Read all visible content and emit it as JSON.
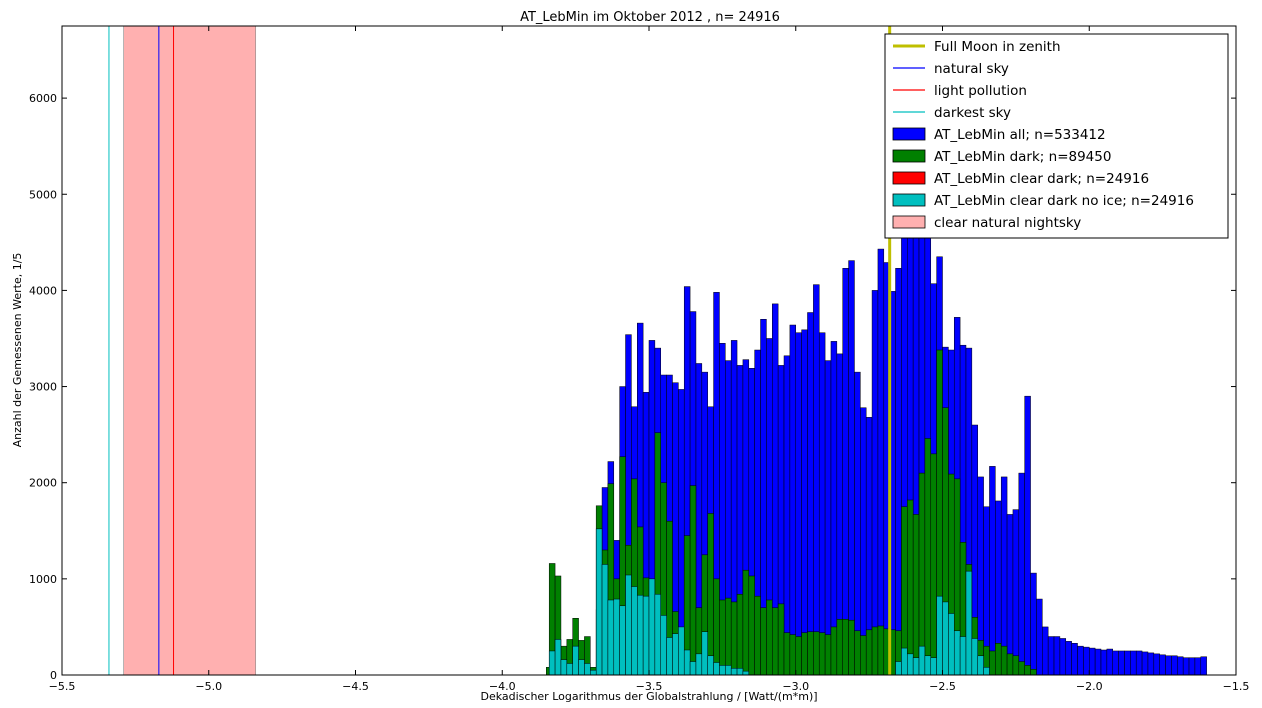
{
  "chart_data": {
    "type": "bar",
    "title": "AT_LebMin im Oktober 2012 , n= 24916",
    "xlabel": "Dekadischer Logarithmus der Globalstrahlung / [Watt/(m*m)]",
    "ylabel": "Anzahl der Gemessenen Werte, 1/5",
    "xlim": [
      -5.5,
      -1.5
    ],
    "ylim": [
      0,
      6750
    ],
    "xticks": [
      -5.5,
      -5.0,
      -4.5,
      -4.0,
      -3.5,
      -3.0,
      -2.5,
      -2.0,
      -1.5
    ],
    "xtick_labels": [
      "−5.5",
      "−5.0",
      "−4.5",
      "−4.0",
      "−3.5",
      "−3.0",
      "−2.5",
      "−2.0",
      "−1.5"
    ],
    "yticks": [
      0,
      1000,
      2000,
      3000,
      4000,
      5000,
      6000
    ],
    "ytick_labels": [
      "0",
      "1000",
      "2000",
      "3000",
      "4000",
      "5000",
      "6000"
    ],
    "grid": false,
    "legend_position": "top-right",
    "bin_start": -3.68,
    "bin_width": 0.02,
    "series": [
      {
        "name": "AT_LebMin all; n=533412",
        "color": "#0000ff",
        "values": [
          680,
          1950,
          2220,
          1400,
          3000,
          3540,
          2790,
          3660,
          2940,
          3480,
          3400,
          3120,
          3120,
          3040,
          2970,
          4040,
          3780,
          3240,
          3150,
          2790,
          3980,
          3450,
          3270,
          3480,
          3220,
          3280,
          3190,
          3380,
          3700,
          3500,
          3860,
          3220,
          3320,
          3640,
          3560,
          3590,
          3770,
          4060,
          3560,
          3270,
          3470,
          3340,
          4230,
          4310,
          3150,
          2780,
          2680,
          4000,
          4430,
          4290,
          3990,
          4230,
          4650,
          6010,
          6450,
          5370,
          4590,
          4070,
          4350,
          3410,
          3380,
          3720,
          3430,
          3400,
          2600,
          2060,
          1750,
          2170,
          1810,
          2060,
          1670,
          1720,
          2100,
          2900,
          1060,
          790,
          500,
          400,
          400,
          380,
          350,
          330,
          300,
          290,
          280,
          270,
          260,
          270,
          250,
          250,
          250,
          250,
          250,
          240,
          230,
          220,
          210,
          200,
          200,
          190,
          180,
          180,
          180,
          190
        ]
      },
      {
        "name": "AT_LebMin dark; n=89450",
        "color": "#008000",
        "values": [
          1760,
          1300,
          1990,
          1000,
          2270,
          1350,
          2040,
          1540,
          1010,
          750,
          2520,
          2000,
          1600,
          660,
          410,
          1450,
          1970,
          700,
          1250,
          1680,
          1000,
          780,
          800,
          760,
          840,
          1090,
          1030,
          820,
          700,
          780,
          700,
          740,
          440,
          420,
          400,
          440,
          450,
          450,
          440,
          420,
          500,
          580,
          580,
          570,
          460,
          410,
          470,
          500,
          510,
          480,
          470,
          460,
          1750,
          1820,
          1670,
          2100,
          2460,
          2300,
          3380,
          2780,
          2090,
          2040,
          1380,
          1150,
          600
        ]
      },
      {
        "name": "AT_LebMin clear dark; n=24916",
        "color": "#ff0000",
        "values": []
      },
      {
        "name": "AT_LebMin clear dark no ice; n=24916",
        "color": "#00bfbf",
        "values": [
          1520,
          1150,
          780,
          790,
          720,
          1040,
          920,
          830,
          820,
          1000,
          840,
          620,
          390,
          430,
          500,
          260,
          140,
          220,
          450,
          200,
          130,
          100,
          100,
          70,
          70,
          40
        ]
      }
    ],
    "secondary_bins": {
      "green_prefix": [
        {
          "x": -3.85,
          "value": 80
        },
        {
          "x": -3.84,
          "value": 1160
        },
        {
          "x": -3.82,
          "value": 1030
        },
        {
          "x": -3.8,
          "value": 300
        },
        {
          "x": -3.78,
          "value": 370
        },
        {
          "x": -3.76,
          "value": 590
        },
        {
          "x": -3.74,
          "value": 360
        },
        {
          "x": -3.72,
          "value": 400
        },
        {
          "x": -3.7,
          "value": 80
        }
      ],
      "cyan_prefix": [
        {
          "x": -3.84,
          "value": 250
        },
        {
          "x": -3.82,
          "value": 370
        },
        {
          "x": -3.8,
          "value": 160
        },
        {
          "x": -3.78,
          "value": 120
        },
        {
          "x": -3.76,
          "value": 300
        },
        {
          "x": -3.74,
          "value": 160
        },
        {
          "x": -3.72,
          "value": 120
        },
        {
          "x": -3.7,
          "value": 50
        }
      ],
      "green_tail": [
        {
          "x": -2.38,
          "value": 360
        },
        {
          "x": -2.36,
          "value": 300
        },
        {
          "x": -2.34,
          "value": 250
        },
        {
          "x": -2.32,
          "value": 330
        },
        {
          "x": -2.3,
          "value": 300
        },
        {
          "x": -2.28,
          "value": 220
        },
        {
          "x": -2.26,
          "value": 200
        },
        {
          "x": -2.24,
          "value": 140
        },
        {
          "x": -2.22,
          "value": 100
        },
        {
          "x": -2.2,
          "value": 60
        }
      ],
      "cyan_tail": [
        {
          "x": -2.66,
          "value": 140
        },
        {
          "x": -2.64,
          "value": 280
        },
        {
          "x": -2.62,
          "value": 220
        },
        {
          "x": -2.6,
          "value": 180
        },
        {
          "x": -2.58,
          "value": 300
        },
        {
          "x": -2.56,
          "value": 200
        },
        {
          "x": -2.54,
          "value": 180
        },
        {
          "x": -2.52,
          "value": 820
        },
        {
          "x": -2.5,
          "value": 760
        },
        {
          "x": -2.48,
          "value": 640
        },
        {
          "x": -2.46,
          "value": 460
        },
        {
          "x": -2.44,
          "value": 400
        },
        {
          "x": -2.42,
          "value": 1080
        },
        {
          "x": -2.4,
          "value": 380
        },
        {
          "x": -2.38,
          "value": 200
        },
        {
          "x": -2.36,
          "value": 80
        }
      ]
    },
    "vertical_lines": [
      {
        "name": "Full Moon in zenith",
        "x": -2.68,
        "color": "#bfbf00",
        "width": 3
      },
      {
        "name": "natural sky",
        "x": -5.17,
        "color": "#0000ff",
        "width": 1
      },
      {
        "name": "light pollution",
        "x": -5.12,
        "color": "#ff0000",
        "width": 1
      },
      {
        "name": "darkest sky",
        "x": -5.34,
        "color": "#00bfbf",
        "width": 1
      }
    ],
    "shaded_regions": [
      {
        "name": "clear natural nightsky",
        "x0": -5.29,
        "x1": -4.84,
        "color": "#ffb0b0"
      }
    ],
    "legend": [
      {
        "label": "Full Moon in zenith",
        "kind": "line",
        "color": "#bfbf00"
      },
      {
        "label": "natural sky",
        "kind": "line",
        "color": "#0000ff"
      },
      {
        "label": "light pollution",
        "kind": "line",
        "color": "#ff0000"
      },
      {
        "label": "darkest sky",
        "kind": "line",
        "color": "#00bfbf"
      },
      {
        "label": "AT_LebMin all; n=533412",
        "kind": "patch",
        "color": "#0000ff"
      },
      {
        "label": "AT_LebMin dark; n=89450",
        "kind": "patch",
        "color": "#008000"
      },
      {
        "label": "AT_LebMin clear dark; n=24916",
        "kind": "patch",
        "color": "#ff0000"
      },
      {
        "label": "AT_LebMin clear dark no ice; n=24916",
        "kind": "patch",
        "color": "#00bfbf"
      },
      {
        "label": "clear natural nightsky",
        "kind": "patch",
        "color": "#ffb0b0"
      }
    ]
  }
}
